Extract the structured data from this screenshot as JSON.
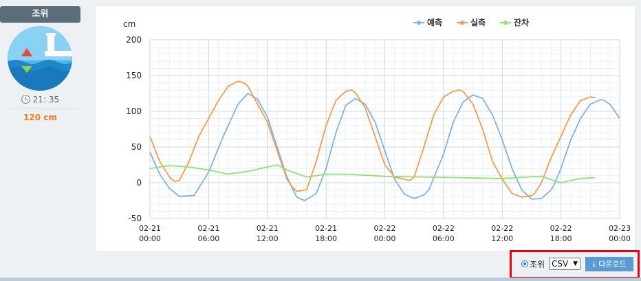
{
  "sidebar": {
    "title": "조위",
    "time": "21: 35",
    "level": "120 cm",
    "icon": "lighthouse-tide-icon"
  },
  "controls": {
    "radio_label": "조위",
    "format": "CSV",
    "download_label": "다운로드"
  },
  "colors": {
    "predicted": "#7fb2e5",
    "observed": "#f59b4f",
    "residual": "#90e074",
    "highlight": "#e60012"
  },
  "chart_data": {
    "type": "line",
    "unit_label": "cm",
    "ylim": [
      -50,
      200
    ],
    "y_ticks": [
      200,
      150,
      100,
      50,
      0,
      -50
    ],
    "x_ticks": [
      {
        "date": "02-21",
        "time": "00:00"
      },
      {
        "date": "02-21",
        "time": "06:00"
      },
      {
        "date": "02-21",
        "time": "12:00"
      },
      {
        "date": "02-21",
        "time": "18:00"
      },
      {
        "date": "02-22",
        "time": "00:00"
      },
      {
        "date": "02-22",
        "time": "06:00"
      },
      {
        "date": "02-22",
        "time": "12:00"
      },
      {
        "date": "02-22",
        "time": "18:00"
      },
      {
        "date": "02-23",
        "time": "00:00"
      }
    ],
    "x_range_hours": [
      0,
      48
    ],
    "grid": true,
    "legend_position": "top-right",
    "series": [
      {
        "name": "예측",
        "key": "predicted",
        "x": [
          0,
          1,
          2,
          3,
          4.5,
          6,
          7.5,
          9,
          10,
          11,
          12,
          13,
          14,
          15,
          15.8,
          17,
          18,
          19,
          20,
          21,
          22,
          23,
          24,
          25,
          26,
          27,
          28,
          28.5,
          30,
          31,
          32,
          33,
          34,
          35,
          36,
          37,
          38,
          39,
          40,
          41,
          41.4,
          42,
          43,
          44,
          45,
          46,
          46.3,
          47,
          48
        ],
        "y": [
          43,
          12,
          -8,
          -19,
          -18,
          15,
          65,
          110,
          125,
          117,
          92,
          50,
          8,
          -20,
          -25,
          -15,
          20,
          70,
          108,
          118,
          110,
          85,
          45,
          5,
          -16,
          -22,
          -17,
          -10,
          40,
          85,
          113,
          123,
          118,
          95,
          60,
          20,
          -10,
          -23,
          -22,
          -10,
          0,
          20,
          60,
          90,
          110,
          116,
          116,
          110,
          90
        ]
      },
      {
        "name": "실측",
        "key": "observed",
        "x": [
          0,
          1,
          2,
          2.5,
          3,
          4,
          5,
          6,
          7,
          8,
          9,
          9.6,
          10,
          11,
          12,
          13,
          14,
          14.5,
          15,
          16,
          17,
          18,
          19,
          20,
          20.6,
          21,
          22,
          23,
          24,
          25,
          26,
          26.5,
          27,
          28,
          29,
          30,
          31,
          31.6,
          32,
          33,
          34,
          35,
          36,
          37,
          38,
          39,
          39.3,
          40,
          41,
          42,
          43,
          44,
          45,
          45.5
        ],
        "y": [
          65,
          30,
          8,
          2,
          3,
          30,
          65,
          90,
          115,
          135,
          142,
          140,
          135,
          110,
          85,
          45,
          5,
          -5,
          -12,
          -10,
          30,
          80,
          115,
          128,
          130,
          126,
          105,
          65,
          25,
          8,
          5,
          3,
          8,
          50,
          95,
          120,
          128,
          130,
          128,
          110,
          75,
          30,
          5,
          -15,
          -20,
          -18,
          -15,
          0,
          35,
          65,
          95,
          115,
          120,
          119
        ]
      },
      {
        "name": "잔차",
        "key": "residual",
        "x": [
          0,
          2,
          4,
          6,
          8,
          10,
          12,
          13,
          14,
          16,
          18,
          20,
          24,
          28,
          32,
          36,
          40,
          42,
          44,
          45.5
        ],
        "y": [
          20,
          24,
          22,
          18,
          12,
          16,
          22,
          25,
          18,
          8,
          12,
          12,
          9,
          8,
          7,
          6,
          9,
          0,
          6,
          7
        ]
      }
    ]
  }
}
